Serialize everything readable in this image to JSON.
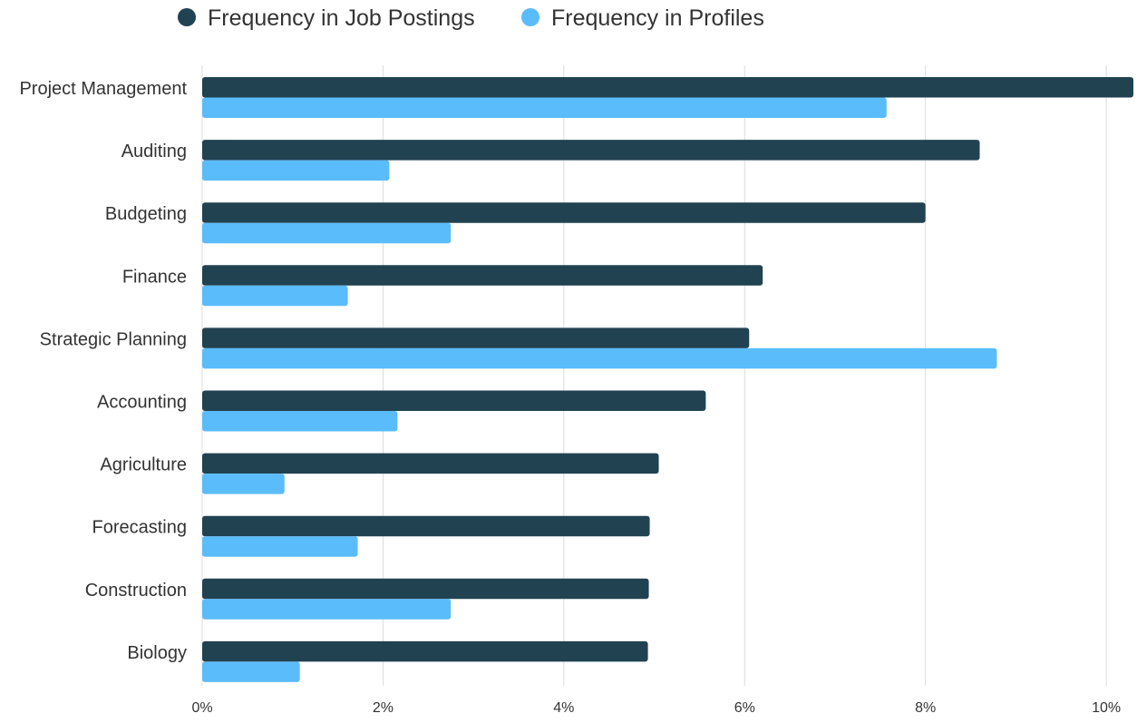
{
  "chart_data": {
    "type": "bar",
    "orientation": "horizontal",
    "categories": [
      "Project Management",
      "Auditing",
      "Budgeting",
      "Finance",
      "Strategic Planning",
      "Accounting",
      "Agriculture",
      "Forecasting",
      "Construction",
      "Biology"
    ],
    "series": [
      {
        "name": "Frequency in Job Postings",
        "color": "#214251",
        "values": [
          10.3,
          8.6,
          8.0,
          6.2,
          6.05,
          5.57,
          5.05,
          4.95,
          4.94,
          4.93
        ]
      },
      {
        "name": "Frequency in Profiles",
        "color": "#5bbcfc",
        "values": [
          7.57,
          2.07,
          2.75,
          1.61,
          8.79,
          2.16,
          0.91,
          1.72,
          2.75,
          1.08
        ]
      }
    ],
    "x_ticks": [
      0,
      2,
      4,
      6,
      8,
      10
    ],
    "x_tick_labels": [
      "0%",
      "2%",
      "4%",
      "6%",
      "8%",
      "10%"
    ],
    "xlim": [
      0,
      10.3
    ],
    "grid": "vertical",
    "legend": "top"
  }
}
